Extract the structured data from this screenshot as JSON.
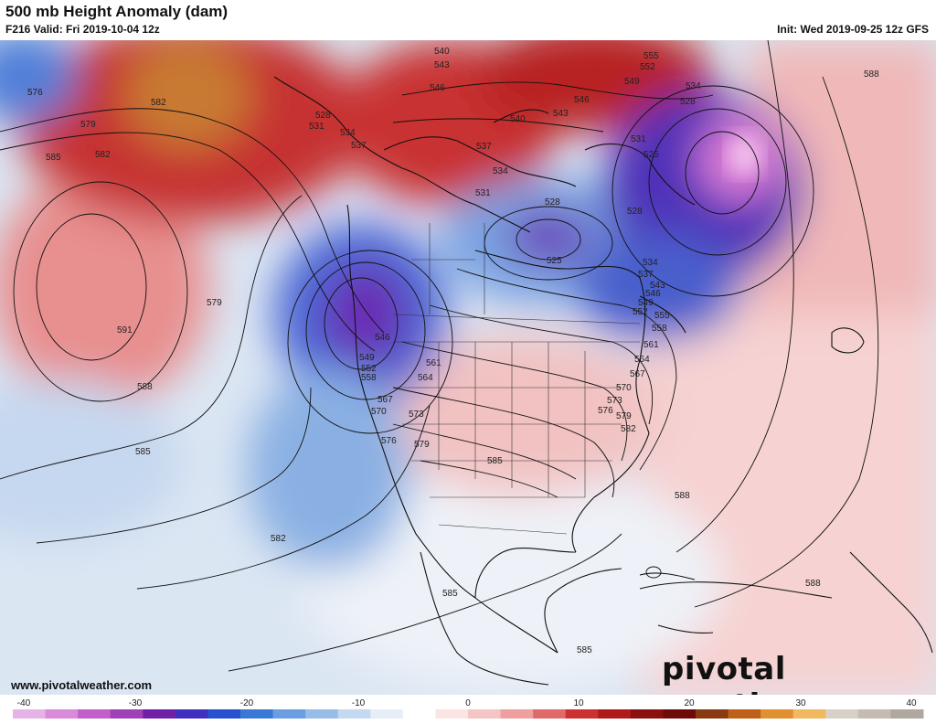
{
  "header": {
    "title": "500 mb Height Anomaly (dam)",
    "valid": "F216 Valid: Fri 2019-10-04 12z",
    "init": "Init: Wed 2019-09-25 12z GFS"
  },
  "footer": {
    "website": "www.pivotalweather.com",
    "brand": "pivotal weather"
  },
  "colorbar": {
    "ticks": [
      "-40",
      "-30",
      "-20",
      "-10",
      "0",
      "10",
      "20",
      "30",
      "40"
    ],
    "colors": [
      "#e6b3e6",
      "#d98ad9",
      "#c060c8",
      "#a040b8",
      "#7020a8",
      "#4030c0",
      "#2850d0",
      "#3a78d8",
      "#6a9ee0",
      "#98bce8",
      "#c4d8f0",
      "#e6eef8",
      "#ffffff",
      "#fbe4e4",
      "#f5c4c4",
      "#eea0a0",
      "#e06a6a",
      "#cc3030",
      "#b01a1a",
      "#8c0f0f",
      "#6e0a0a",
      "#8a3a10",
      "#c06018",
      "#e09030",
      "#f0b860",
      "#d8d0c8",
      "#c4bcb4",
      "#b0a8a0"
    ]
  },
  "contour_labels": [
    "576",
    "582",
    "579",
    "585",
    "582",
    "591",
    "588",
    "585",
    "579",
    "528",
    "531",
    "534",
    "537",
    "540",
    "543",
    "546",
    "537",
    "534",
    "531",
    "528",
    "525",
    "555",
    "552",
    "549",
    "546",
    "543",
    "540",
    "534",
    "528",
    "531",
    "525",
    "528",
    "534",
    "537",
    "543",
    "546",
    "549",
    "552",
    "555",
    "558",
    "561",
    "564",
    "567",
    "570",
    "573",
    "576",
    "579",
    "582",
    "546",
    "549",
    "552",
    "558",
    "561",
    "564",
    "567",
    "570",
    "573",
    "576",
    "579",
    "585",
    "588",
    "588",
    "588",
    "582",
    "585",
    "585"
  ]
}
